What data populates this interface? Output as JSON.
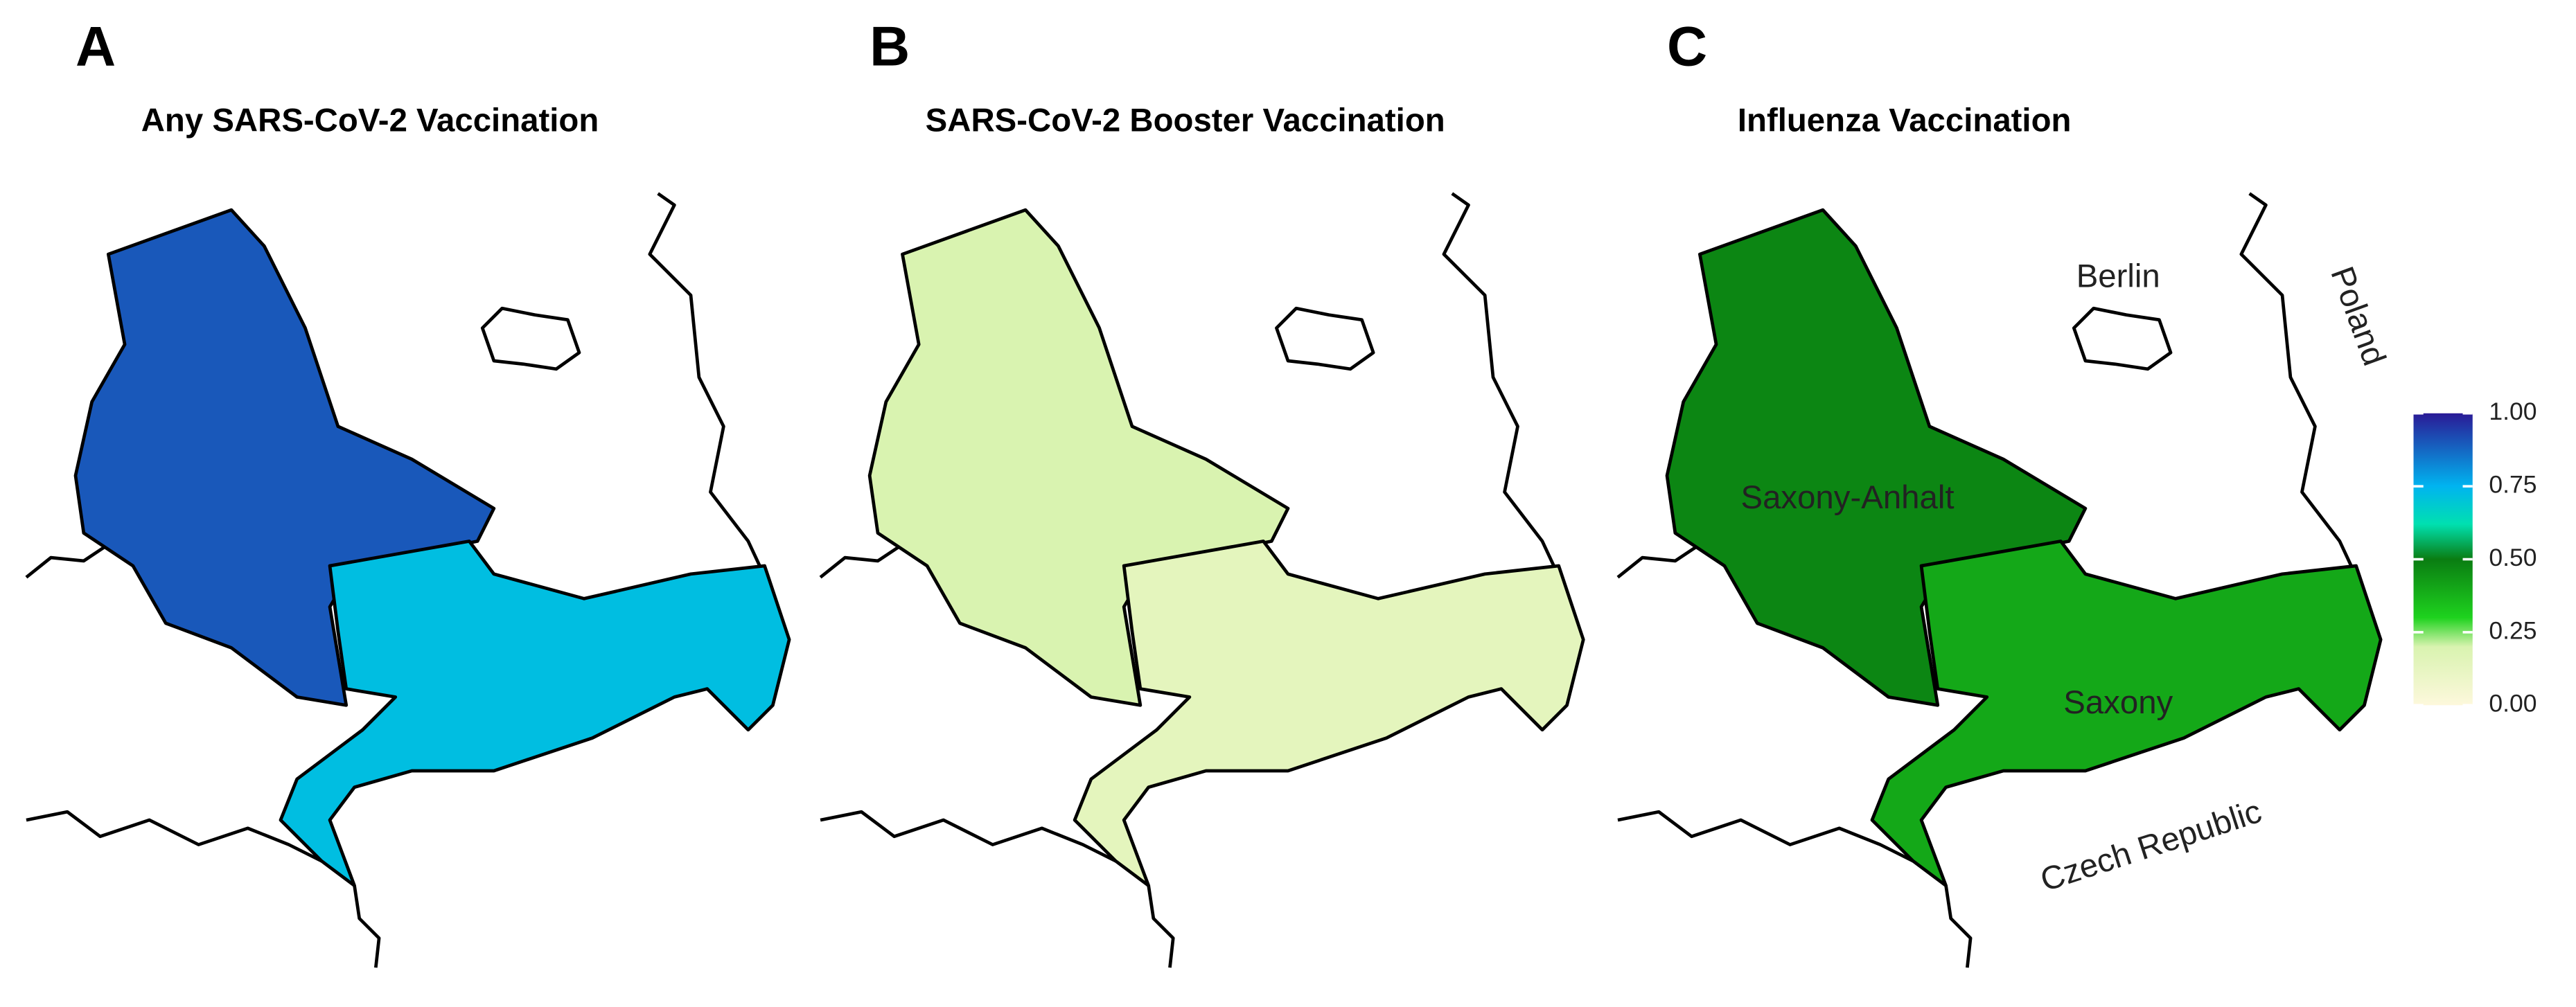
{
  "chart_data": {
    "type": "choropleth",
    "panels": [
      {
        "letter": "A",
        "title": "Any SARS-CoV-2 Vaccination",
        "values": [
          0.9,
          0.72
        ]
      },
      {
        "letter": "B",
        "title": "SARS-CoV-2 Booster Vaccination",
        "values": [
          0.2,
          0.14
        ]
      },
      {
        "letter": "C",
        "title": "Influenza Vaccination",
        "values": [
          0.48,
          0.4
        ]
      }
    ],
    "places": [
      "Berlin",
      "Poland",
      "Saxony-Anhalt",
      "Saxony",
      "Czech Republic"
    ],
    "colorscale": [
      {
        "value": 0,
        "color": "#fdf8dc"
      },
      {
        "value": 0.2,
        "color": "#d9f3b0"
      },
      {
        "value": 0.3,
        "color": "#1ed21e"
      },
      {
        "value": 0.5,
        "color": "#0a7d12"
      },
      {
        "value": 0.62,
        "color": "#00e0b0"
      },
      {
        "value": 0.75,
        "color": "#00b4f0"
      },
      {
        "value": 1,
        "color": "#2a1a96"
      }
    ],
    "clim": [
      0,
      1
    ],
    "cticks": [
      {
        "value": 0,
        "label": "0.00"
      },
      {
        "value": 0.25,
        "label": "0.25"
      },
      {
        "value": 0.5,
        "label": "0.50"
      },
      {
        "value": 0.75,
        "label": "0.75"
      },
      {
        "value": 1,
        "label": "1.00"
      }
    ]
  }
}
